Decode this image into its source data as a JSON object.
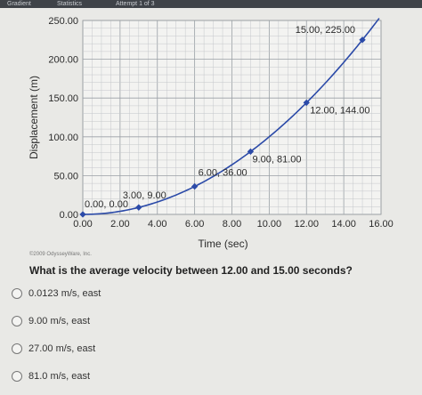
{
  "topbar": {
    "left_text": "Gradient",
    "middle_text": "Statistics",
    "attempt": "Attempt 1 of 3"
  },
  "copyright": "©2009 OdysseyWare, Inc.",
  "question": "What is the average velocity between 12.00 and 15.00 seconds?",
  "options": [
    {
      "label": "0.0123 m/s, east"
    },
    {
      "label": "9.00 m/s, east"
    },
    {
      "label": "27.00 m/s, east"
    },
    {
      "label": "81.0 m/s, east"
    }
  ],
  "chart_data": {
    "type": "line",
    "xlabel": "Time (sec)",
    "ylabel": "Displacement (m)",
    "xlim": [
      0,
      16
    ],
    "ylim": [
      0,
      250
    ],
    "x_ticks": [
      "0.00",
      "2.00",
      "4.00",
      "6.00",
      "8.00",
      "10.00",
      "12.00",
      "14.00",
      "16.00"
    ],
    "y_ticks": [
      "0.00",
      "50.00",
      "100.00",
      "150.00",
      "200.00",
      "250.00"
    ],
    "grid": true,
    "line_color": "#2b4aa8",
    "points": [
      {
        "x": 0,
        "y": 0,
        "label": "0.00, 0.00"
      },
      {
        "x": 3,
        "y": 9,
        "label": "3.00, 9.00"
      },
      {
        "x": 6,
        "y": 36,
        "label": "6.00, 36.00"
      },
      {
        "x": 9,
        "y": 81,
        "label": "9.00, 81.00"
      },
      {
        "x": 12,
        "y": 144,
        "label": "12.00, 144.00"
      },
      {
        "x": 15,
        "y": 225,
        "label": "15.00, 225.00"
      }
    ]
  }
}
